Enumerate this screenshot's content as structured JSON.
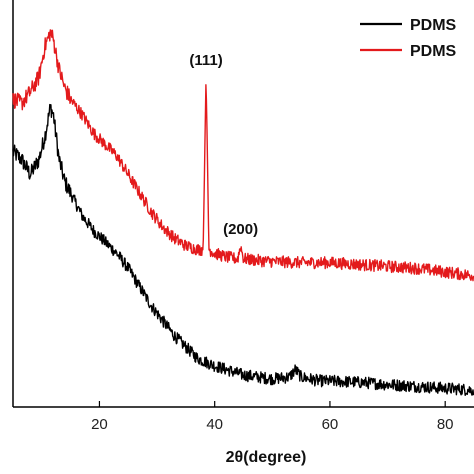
{
  "chart_data": {
    "type": "line",
    "title": "",
    "xlabel": "2θ(degree)",
    "ylabel": "",
    "xlim": [
      5,
      85
    ],
    "ylim": [
      0,
      100
    ],
    "xticks": [
      20,
      40,
      60,
      80
    ],
    "y_tick_labels": false,
    "grid": false,
    "legend": {
      "placement": "top-right"
    },
    "series": [
      {
        "name": "PDMS",
        "color": "#000000",
        "points": [
          [
            5,
            68
          ],
          [
            6.5,
            66
          ],
          [
            8,
            62
          ],
          [
            9.5,
            66
          ],
          [
            10.5,
            72
          ],
          [
            11.5,
            80
          ],
          [
            12,
            78
          ],
          [
            13,
            66
          ],
          [
            14,
            60
          ],
          [
            15,
            57
          ],
          [
            17,
            51
          ],
          [
            19,
            47
          ],
          [
            21,
            44
          ],
          [
            23,
            41
          ],
          [
            25,
            37
          ],
          [
            27,
            32
          ],
          [
            29,
            27
          ],
          [
            31,
            23
          ],
          [
            33,
            19
          ],
          [
            35,
            16
          ],
          [
            37,
            13
          ],
          [
            40,
            11
          ],
          [
            45,
            8.5
          ],
          [
            50,
            7.5
          ],
          [
            53,
            8
          ],
          [
            54,
            10
          ],
          [
            55,
            8
          ],
          [
            58,
            7
          ],
          [
            62,
            6.8
          ],
          [
            66,
            6.5
          ],
          [
            70,
            6
          ],
          [
            75,
            5.5
          ],
          [
            80,
            5
          ],
          [
            85,
            4.5
          ]
        ]
      },
      {
        "name": "PDMS",
        "color": "#e31a1c",
        "points": [
          [
            5,
            82
          ],
          [
            6.5,
            81
          ],
          [
            8,
            84
          ],
          [
            9.5,
            88
          ],
          [
            10.5,
            96
          ],
          [
            11.5,
            100
          ],
          [
            12,
            98
          ],
          [
            13,
            90
          ],
          [
            14,
            85
          ],
          [
            15,
            82
          ],
          [
            17,
            78
          ],
          [
            19,
            73
          ],
          [
            21,
            70
          ],
          [
            23,
            67
          ],
          [
            25,
            62
          ],
          [
            27,
            57
          ],
          [
            29,
            52
          ],
          [
            31,
            48
          ],
          [
            33,
            45
          ],
          [
            35,
            43
          ],
          [
            37,
            42
          ],
          [
            38,
            42
          ],
          [
            38.3,
            70
          ],
          [
            38.5,
            88
          ],
          [
            38.7,
            70
          ],
          [
            39,
            42
          ],
          [
            40,
            41
          ],
          [
            42,
            40
          ],
          [
            44,
            39.5
          ],
          [
            44.5,
            43
          ],
          [
            45,
            39.5
          ],
          [
            48,
            39
          ],
          [
            50,
            38.8
          ],
          [
            55,
            38.5
          ],
          [
            60,
            38.5
          ],
          [
            65,
            38
          ],
          [
            70,
            37.5
          ],
          [
            75,
            37
          ],
          [
            80,
            36
          ],
          [
            85,
            35
          ]
        ]
      }
    ],
    "annotations": [
      {
        "text": "(111)",
        "x": 38.5,
        "y": 88
      },
      {
        "text": "(200)",
        "x": 44.5,
        "y": 43
      }
    ]
  }
}
